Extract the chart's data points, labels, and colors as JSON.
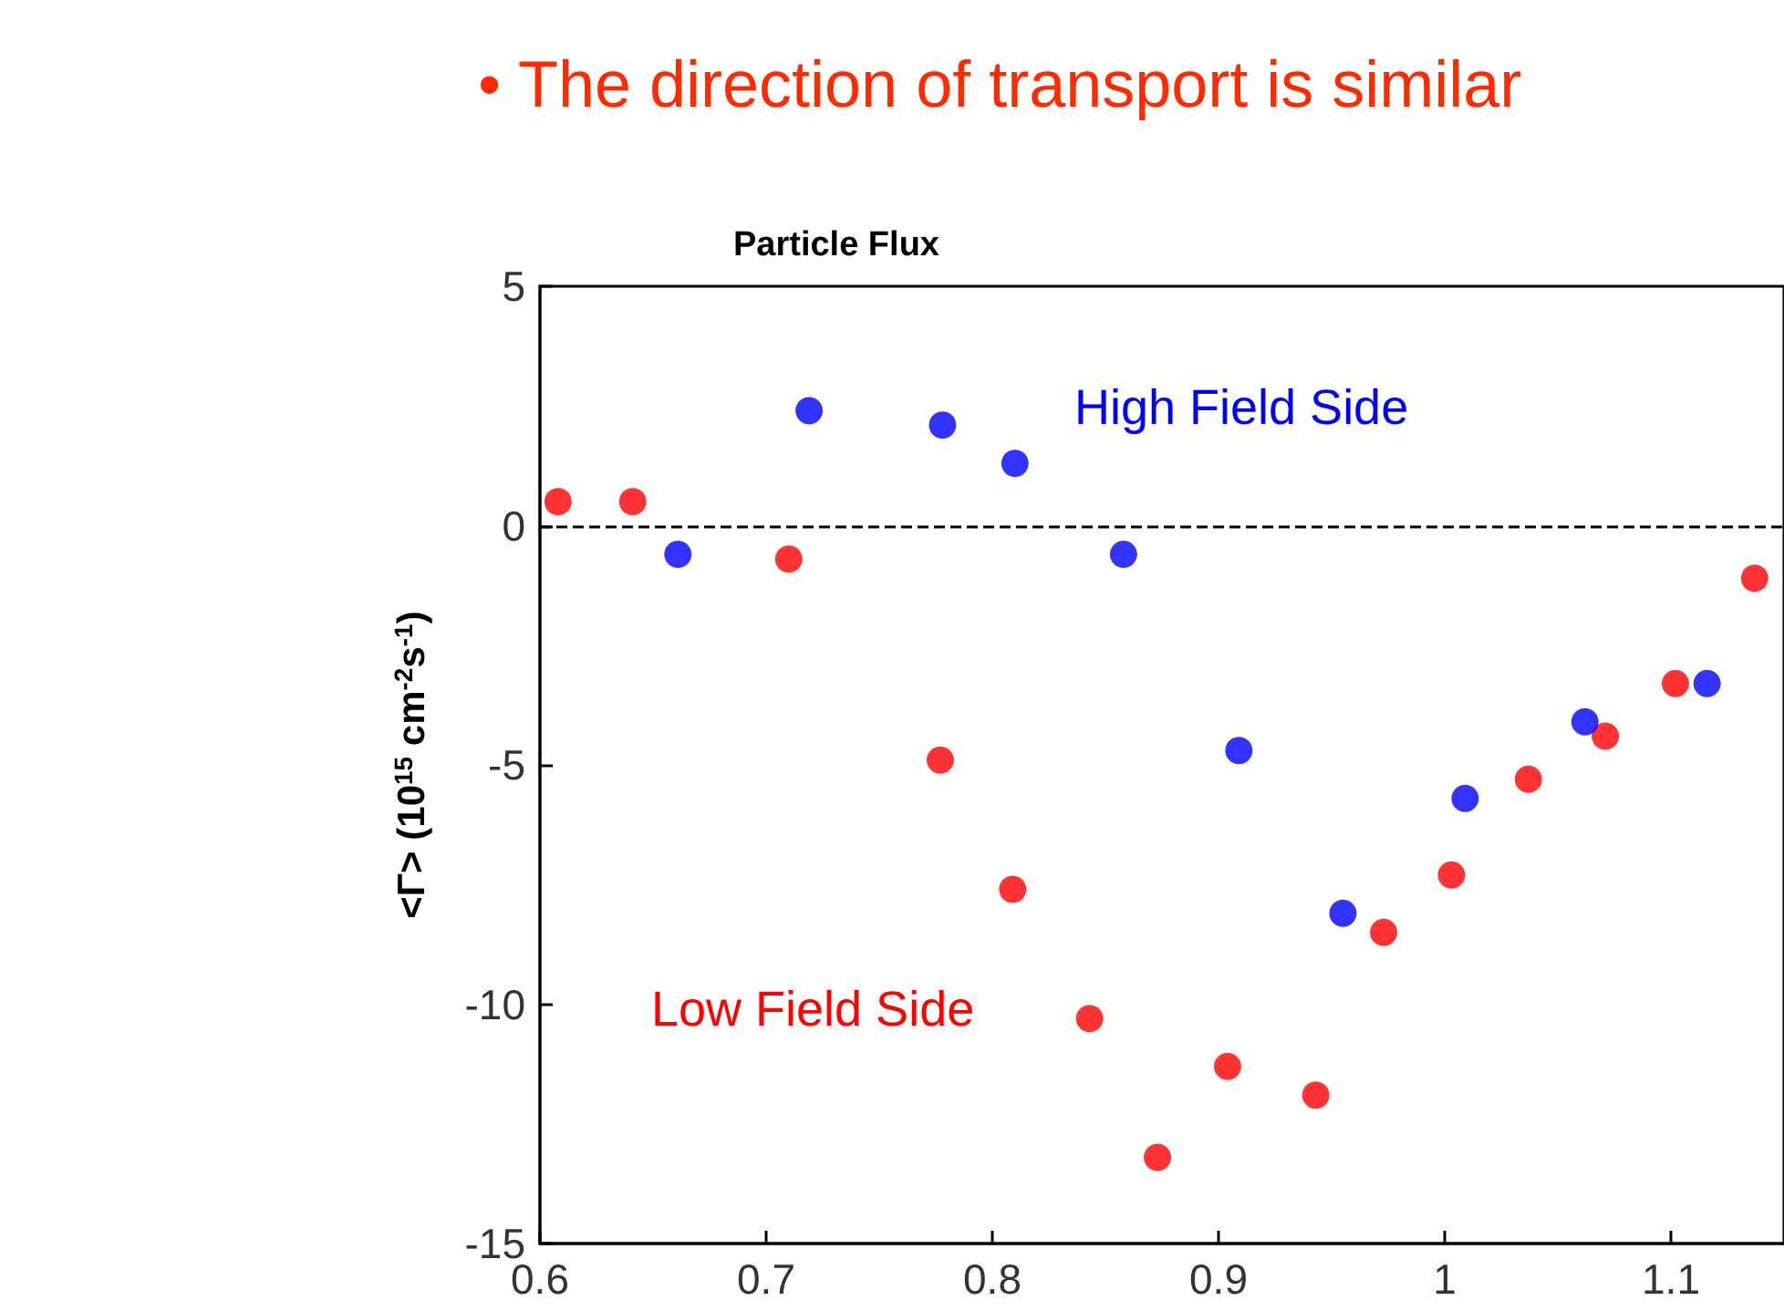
{
  "chart_data": {
    "type": "scatter",
    "title": "Particle Flux",
    "ylabel": "<Γ> (10$^{15}$ cm$^{-2}$s$^{-1}$)",
    "annotations": [
      "• The direction of transport is similar"
    ],
    "series": [
      {
        "name": "Low Field Side",
        "color": "#ff0000",
        "x": [
          0.608,
          0.641,
          0.71,
          0.777,
          0.809,
          0.843,
          0.873,
          0.904,
          0.943,
          0.973,
          1.003,
          1.037,
          1.071,
          1.102,
          1.137
        ],
        "values": [
          0.5,
          0.5,
          -0.7,
          -4.9,
          -7.6,
          -10.3,
          -13.2,
          -11.3,
          -11.9,
          -8.5,
          -7.3,
          -5.3,
          -4.4,
          -3.3,
          -1.1
        ]
      },
      {
        "name": "High Field Side",
        "color": "#0000ff",
        "x": [
          0.661,
          0.719,
          0.778,
          0.81,
          0.858,
          0.909,
          0.955,
          1.009,
          1.062,
          1.116
        ],
        "values": [
          -0.6,
          2.4,
          2.1,
          1.3,
          -0.6,
          -4.7,
          -8.1,
          -5.7,
          -4.1,
          -3.3
        ]
      }
    ],
    "xlim": [
      0.6,
      1.15
    ],
    "xticks": [
      0.6,
      0.7,
      0.8,
      0.9,
      1,
      1.1
    ],
    "ylim": [
      -15,
      5
    ],
    "yticks": [
      -15,
      -10,
      -5,
      0,
      5
    ],
    "ref_lines": [
      {
        "axis": "y",
        "value": 0,
        "color": "#000000",
        "line_style": "dashed"
      }
    ],
    "grid": false,
    "marker": "circle"
  }
}
